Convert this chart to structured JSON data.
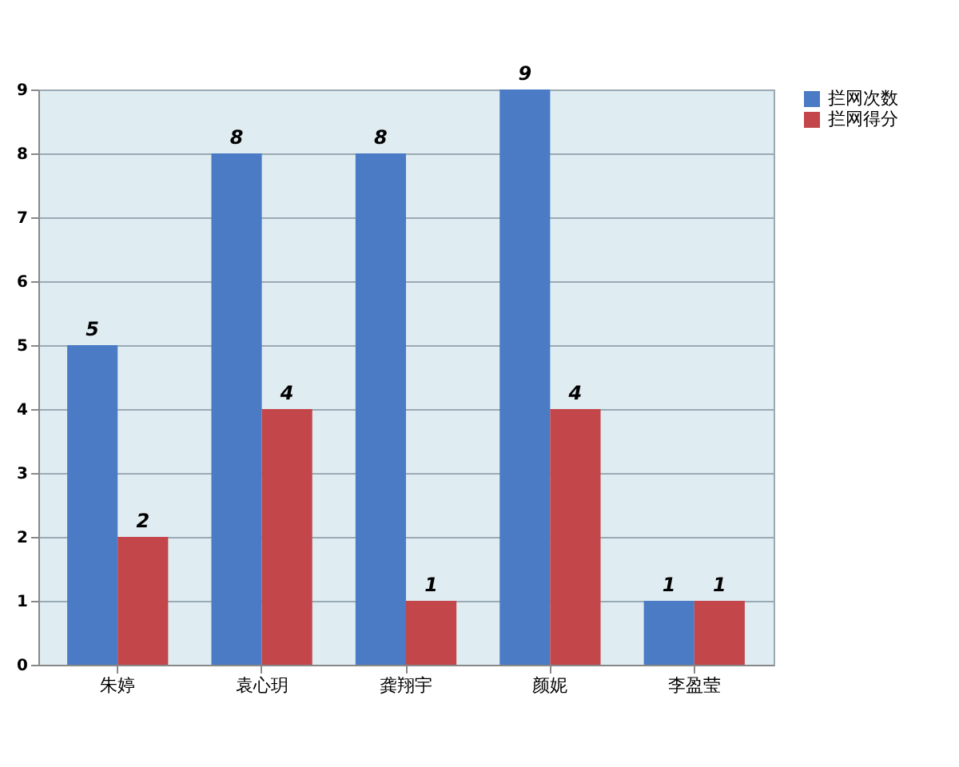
{
  "chart_data": {
    "type": "bar",
    "categories": [
      "朱婷",
      "袁心玥",
      "龚翔宇",
      "颜妮",
      "李盈莹"
    ],
    "series": [
      {
        "name": "拦网次数",
        "color": "#4a7bc4",
        "values": [
          5,
          8,
          8,
          9,
          1
        ]
      },
      {
        "name": "拦网得分",
        "color": "#c2464a",
        "values": [
          2,
          4,
          1,
          4,
          1
        ]
      }
    ],
    "ylim": [
      0,
      9
    ],
    "yticks": [
      0,
      1,
      2,
      3,
      4,
      5,
      6,
      7,
      8,
      9
    ],
    "grid": "y",
    "legend": "right",
    "data_labels": true
  }
}
